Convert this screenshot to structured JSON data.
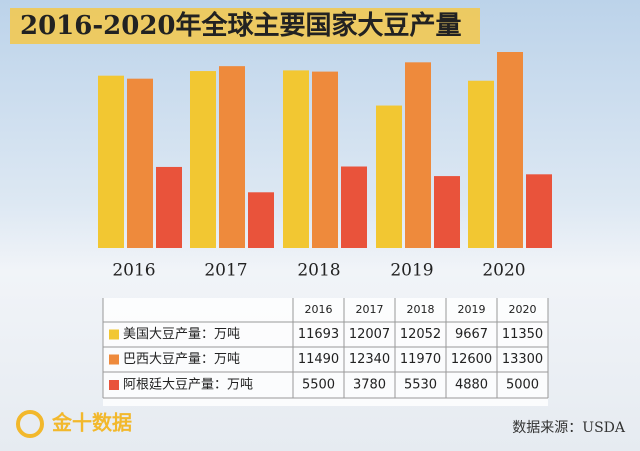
{
  "chart_data": {
    "type": "bar",
    "title": "2016-2020年全球主要国家大豆产量",
    "categories": [
      "2016",
      "2017",
      "2018",
      "2019",
      "2020"
    ],
    "series": [
      {
        "name": "美国大豆产量：万吨",
        "color": "#f2c732",
        "values": [
          11693,
          12007,
          12052,
          9667,
          11350
        ]
      },
      {
        "name": "巴西大豆产量：万吨",
        "color": "#ee8a3c",
        "values": [
          11490,
          12340,
          11970,
          12600,
          13300
        ]
      },
      {
        "name": "阿根廷大豆产量：万吨",
        "color": "#e9533b",
        "values": [
          5500,
          3780,
          5530,
          4880,
          5000
        ]
      }
    ],
    "source": "数据来源：USDA",
    "logo": "金十数据"
  }
}
